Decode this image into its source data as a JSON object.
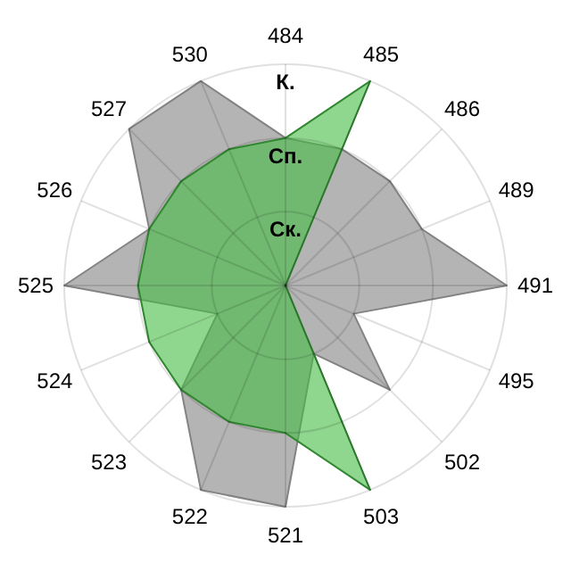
{
  "chart_data": {
    "type": "radar",
    "categories": [
      "484",
      "485",
      "486",
      "489",
      "491",
      "495",
      "502",
      "503",
      "521",
      "522",
      "523",
      "524",
      "525",
      "526",
      "527",
      "530"
    ],
    "ylim": [
      0,
      3
    ],
    "yticks": [
      {
        "value": 1,
        "label": "Ск."
      },
      {
        "value": 2,
        "label": "Сп."
      },
      {
        "value": 3,
        "label": "К."
      }
    ],
    "grid": true,
    "series": [
      {
        "color": "#b4b4b4",
        "values": [
          2,
          2,
          2,
          2,
          3,
          1,
          2,
          1,
          3,
          3,
          2,
          1,
          3,
          2,
          3,
          3
        ]
      },
      {
        "color": "#44bc44",
        "values": [
          2,
          3,
          0,
          0,
          0,
          0,
          0,
          3,
          2,
          2,
          2,
          2,
          2,
          2,
          2,
          2
        ]
      }
    ]
  }
}
